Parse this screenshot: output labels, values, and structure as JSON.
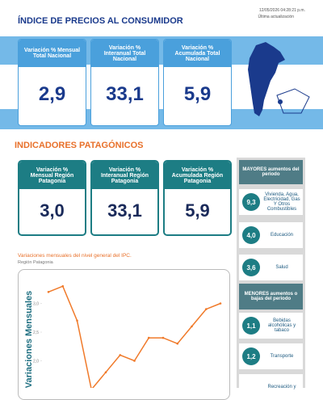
{
  "header": {
    "title": "ÍNDICE DE PRECIOS AL CONSUMIDOR",
    "timestamp": "12/05/2026 04:28:21 p.m.",
    "update_label": "Última actualización"
  },
  "national": [
    {
      "label": "Variación % Mensual Total Nacional",
      "value": "2,9"
    },
    {
      "label": "Variación % Interanual Total Nacional",
      "value": "33,1"
    },
    {
      "label": "Variación % Acumulada Total Nacional",
      "value": "5,9"
    }
  ],
  "patagonia": {
    "title": "INDICADORES PATAGÓNICOS",
    "cards": [
      {
        "label": "Variación % Mensual Región Patagonia",
        "value": "3,0"
      },
      {
        "label": "Variación % Interanual Región Patagonia",
        "value": "33,1"
      },
      {
        "label": "Variación % Acumulada Región Patagonia",
        "value": "5,9"
      }
    ]
  },
  "ranking": {
    "top_title": "MAYORES aumentos del periodo",
    "top": [
      {
        "value": "9,3",
        "label": "Vivienda, Agua, Electricidad, Gas Y Otros Combustibles"
      },
      {
        "value": "4,0",
        "label": "Educación"
      },
      {
        "value": "3,6",
        "label": "Salud"
      }
    ],
    "bottom_title": "MENORES aumentos o bajas del periodo",
    "bottom": [
      {
        "value": "1,1",
        "label": "Bebidas alcohólicas y tabaco"
      },
      {
        "value": "1,2",
        "label": "Transporte"
      },
      {
        "label": "Recreación y"
      }
    ]
  },
  "chart_data": {
    "type": "line",
    "title": "Variaciones mensuales del nivel general del IPC.",
    "subtitle": "Región Patagonia",
    "y_label": "Variaciones Mensuales",
    "categories": [
      null,
      null,
      null,
      null,
      null,
      null,
      null,
      null,
      null,
      null,
      null,
      null,
      null
    ],
    "series": [
      {
        "name": null,
        "color": "#f07a2a",
        "values": [
          3.2,
          3.3,
          2.7,
          1.5,
          1.8,
          2.1,
          2.0,
          2.4,
          2.4,
          2.3,
          2.6,
          2.9,
          3.0
        ]
      }
    ],
    "ylim": [
      1.5,
      3.5
    ],
    "yticks": [
      {
        "value": 2.0,
        "label": "2,0"
      },
      {
        "value": 2.5,
        "label": "2,5"
      },
      {
        "value": 3.0,
        "label": "3,0"
      }
    ]
  }
}
